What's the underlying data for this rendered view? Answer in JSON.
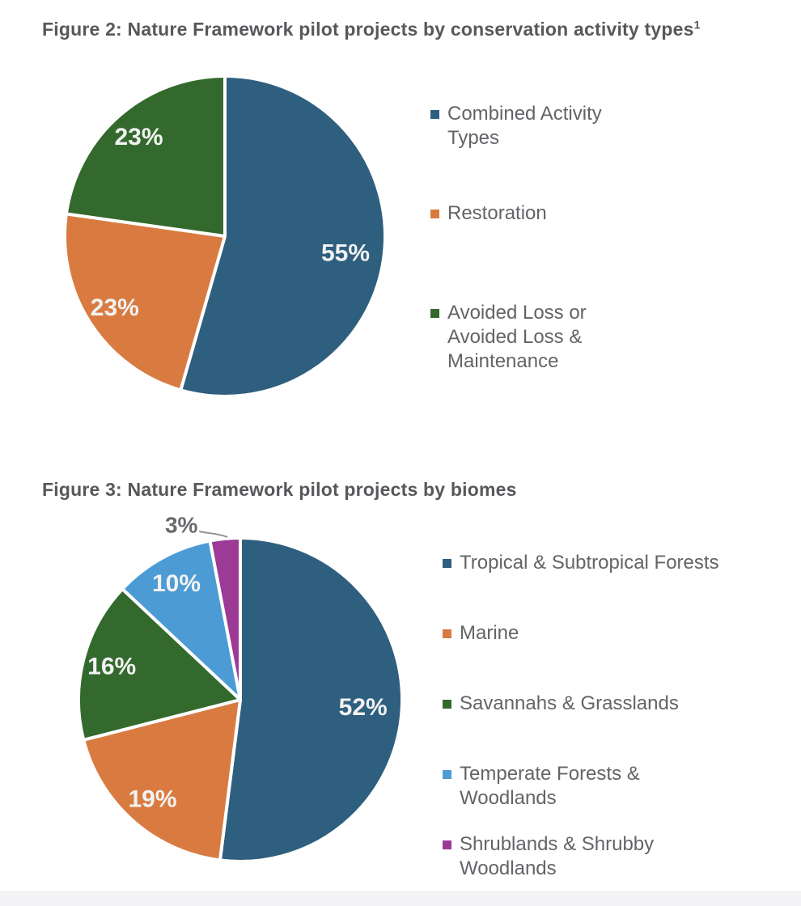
{
  "page": {
    "background": "#FFFFFF",
    "footer_strip_color": "#F4F4F6"
  },
  "colors": {
    "title_text": "#57585B",
    "legend_text": "#636468",
    "pie_label_inside": "#F2F2F2",
    "pie_label_outside": "#696A6E",
    "slice_separator": "#FFFFFF",
    "leader_line": "#909195"
  },
  "chart_data": [
    {
      "type": "pie",
      "title": "Figure 2: Nature Framework pilot projects by conservation activity types",
      "title_superscript": "1",
      "legend_position": "right",
      "start_angle": "12-oclock",
      "direction": "clockwise",
      "slices": [
        {
          "label": "Combined Activity Types",
          "legend_lines": [
            "Combined Activity",
            "Types"
          ],
          "value": 55,
          "value_label": "55%",
          "color": "#2F5F7E",
          "label_outside": false
        },
        {
          "label": "Restoration",
          "legend_lines": [
            "Restoration"
          ],
          "value": 23,
          "value_label": "23%",
          "color": "#D97B41",
          "label_outside": false
        },
        {
          "label": "Avoided Loss or Avoided Loss & Maintenance",
          "legend_lines": [
            "Avoided Loss or",
            "Avoided Loss &",
            "Maintenance"
          ],
          "value": 23,
          "value_label": "23%",
          "color": "#34692D",
          "label_outside": false
        }
      ]
    },
    {
      "type": "pie",
      "title": "Figure 3: Nature Framework pilot projects by biomes",
      "title_superscript": "",
      "legend_position": "right",
      "start_angle": "12-oclock",
      "direction": "clockwise",
      "slices": [
        {
          "label": "Tropical & Subtropical Forests",
          "legend_lines": [
            "Tropical & Subtropical Forests"
          ],
          "value": 52,
          "value_label": "52%",
          "color": "#2F5F7E",
          "label_outside": false
        },
        {
          "label": "Marine",
          "legend_lines": [
            "Marine"
          ],
          "value": 19,
          "value_label": "19%",
          "color": "#D97B41",
          "label_outside": false
        },
        {
          "label": "Savannahs & Grasslands",
          "legend_lines": [
            "Savannahs & Grasslands"
          ],
          "value": 16,
          "value_label": "16%",
          "color": "#34692D",
          "label_outside": false
        },
        {
          "label": "Temperate Forests & Woodlands",
          "legend_lines": [
            "Temperate Forests &",
            "Woodlands"
          ],
          "value": 10,
          "value_label": "10%",
          "color": "#4D9BD5",
          "label_outside": false
        },
        {
          "label": "Shrublands & Shrubby Woodlands",
          "legend_lines": [
            "Shrublands & Shrubby",
            "Woodlands"
          ],
          "value": 3,
          "value_label": "3%",
          "color": "#9C3A96",
          "label_outside": true
        }
      ]
    }
  ]
}
